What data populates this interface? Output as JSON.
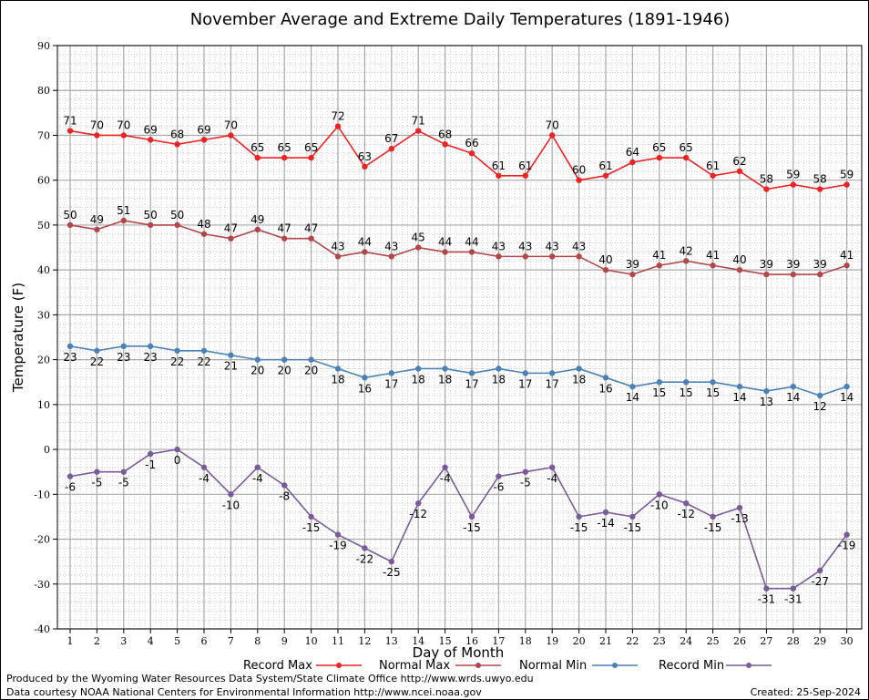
{
  "chart_data": {
    "type": "line",
    "title": "November Average and Extreme Daily Temperatures (1891-1946)",
    "xlabel": "Day of Month",
    "ylabel": "Temperature (F)",
    "ylim": [
      -40,
      90
    ],
    "yticks": [
      90,
      80,
      70,
      60,
      50,
      40,
      30,
      20,
      10,
      0,
      -10,
      -20,
      -30,
      -40
    ],
    "grid": true,
    "legend_position": "bottom",
    "categories": [
      "1",
      "2",
      "3",
      "4",
      "5",
      "6",
      "7",
      "8",
      "9",
      "10",
      "11",
      "12",
      "13",
      "14",
      "15",
      "16",
      "17",
      "18",
      "19",
      "20",
      "21",
      "22",
      "23",
      "24",
      "25",
      "26",
      "27",
      "28",
      "29",
      "30"
    ],
    "series": [
      {
        "name": "Record Max",
        "color": "#ee2222",
        "values": [
          71,
          70,
          70,
          69,
          68,
          69,
          70,
          65,
          65,
          65,
          72,
          63,
          67,
          71,
          68,
          66,
          61,
          61,
          70,
          60,
          61,
          64,
          65,
          65,
          61,
          62,
          58,
          59,
          58,
          59
        ]
      },
      {
        "name": "Normal Max",
        "color": "#b4464a",
        "values": [
          50,
          49,
          51,
          50,
          50,
          48,
          47,
          49,
          47,
          47,
          43,
          44,
          43,
          45,
          44,
          44,
          43,
          43,
          43,
          43,
          40,
          39,
          41,
          42,
          41,
          40,
          39,
          39,
          39,
          41
        ]
      },
      {
        "name": "Normal Min",
        "color": "#4a82b8",
        "values": [
          23,
          22,
          23,
          23,
          22,
          22,
          21,
          20,
          20,
          20,
          18,
          16,
          17,
          18,
          18,
          17,
          18,
          17,
          17,
          18,
          16,
          14,
          15,
          15,
          15,
          14,
          13,
          14,
          12,
          14
        ]
      },
      {
        "name": "Record Min",
        "color": "#7a5a9a",
        "values": [
          -6,
          -5,
          -5,
          -1,
          0,
          -4,
          -10,
          -4,
          -8,
          -15,
          -19,
          -22,
          -25,
          -12,
          -4,
          -15,
          -6,
          -5,
          -4,
          -15,
          -14,
          -15,
          -10,
          -12,
          -15,
          -13,
          -31,
          -31,
          -27,
          -19
        ]
      }
    ]
  },
  "footer": {
    "produced_by": "Produced by the Wyoming Water Resources Data System/State Climate Office http://www.wrds.uwyo.edu",
    "data_courtesy": "Data courtesy NOAA National Centers for Environmental Information http://www.ncei.noaa.gov",
    "created": "Created: 25-Sep-2024"
  }
}
